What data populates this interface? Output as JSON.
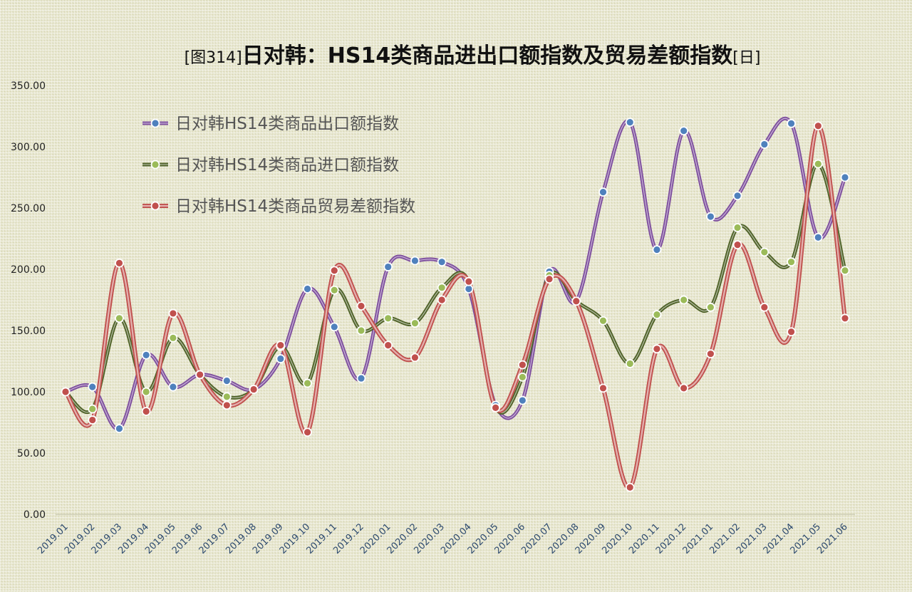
{
  "chart_data": {
    "type": "line",
    "title_prefix": "[图314]",
    "title_main": "日对韩：HS14类商品进出口额指数及贸易差额指数",
    "title_suffix": "[日]",
    "ylim": [
      0,
      350
    ],
    "yticks": [
      "0.00",
      "50.00",
      "100.00",
      "150.00",
      "200.00",
      "250.00",
      "300.00",
      "350.00"
    ],
    "grid": false,
    "legend_position": "top-left",
    "categories": [
      "2019.01",
      "2019.02",
      "2019.03",
      "2019.04",
      "2019.05",
      "2019.06",
      "2019.07",
      "2019.08",
      "2019.09",
      "2019.10",
      "2019.11",
      "2019.12",
      "2020.01",
      "2020.02",
      "2020.03",
      "2020.04",
      "2020.05",
      "2020.06",
      "2020.07",
      "2020.08",
      "2020.09",
      "2020.10",
      "2020.11",
      "2020.12",
      "2021.01",
      "2021.02",
      "2021.03",
      "2021.04",
      "2021.05",
      "2021.06"
    ],
    "series": [
      {
        "name": "日对韩HS14类商品出口额指数",
        "line_color": "#7e4f9e",
        "marker_color": "#4f81bd",
        "values": [
          100,
          104,
          70,
          130,
          104,
          114,
          109,
          102,
          127,
          184,
          153,
          111,
          202,
          207,
          206,
          184,
          89,
          93,
          198,
          174,
          263,
          320,
          216,
          313,
          243,
          260,
          302,
          319,
          226,
          275
        ]
      },
      {
        "name": "日对韩HS14类商品进口额指数",
        "line_color": "#4f6228",
        "marker_color": "#9bbb59",
        "values": [
          100,
          86,
          160,
          100,
          144,
          114,
          96,
          102,
          137,
          107,
          183,
          150,
          160,
          156,
          185,
          190,
          87,
          112,
          195,
          174,
          158,
          123,
          163,
          175,
          169,
          234,
          214,
          206,
          286,
          199
        ]
      },
      {
        "name": "日对韩HS14类商品贸易差额指数",
        "line_color": "#c0504d",
        "marker_color": "#c0504d",
        "values": [
          100,
          77,
          205,
          84,
          164,
          114,
          89,
          102,
          138,
          67,
          199,
          170,
          138,
          128,
          175,
          190,
          87,
          122,
          192,
          174,
          103,
          22,
          135,
          103,
          131,
          220,
          169,
          149,
          317,
          160
        ]
      }
    ]
  }
}
